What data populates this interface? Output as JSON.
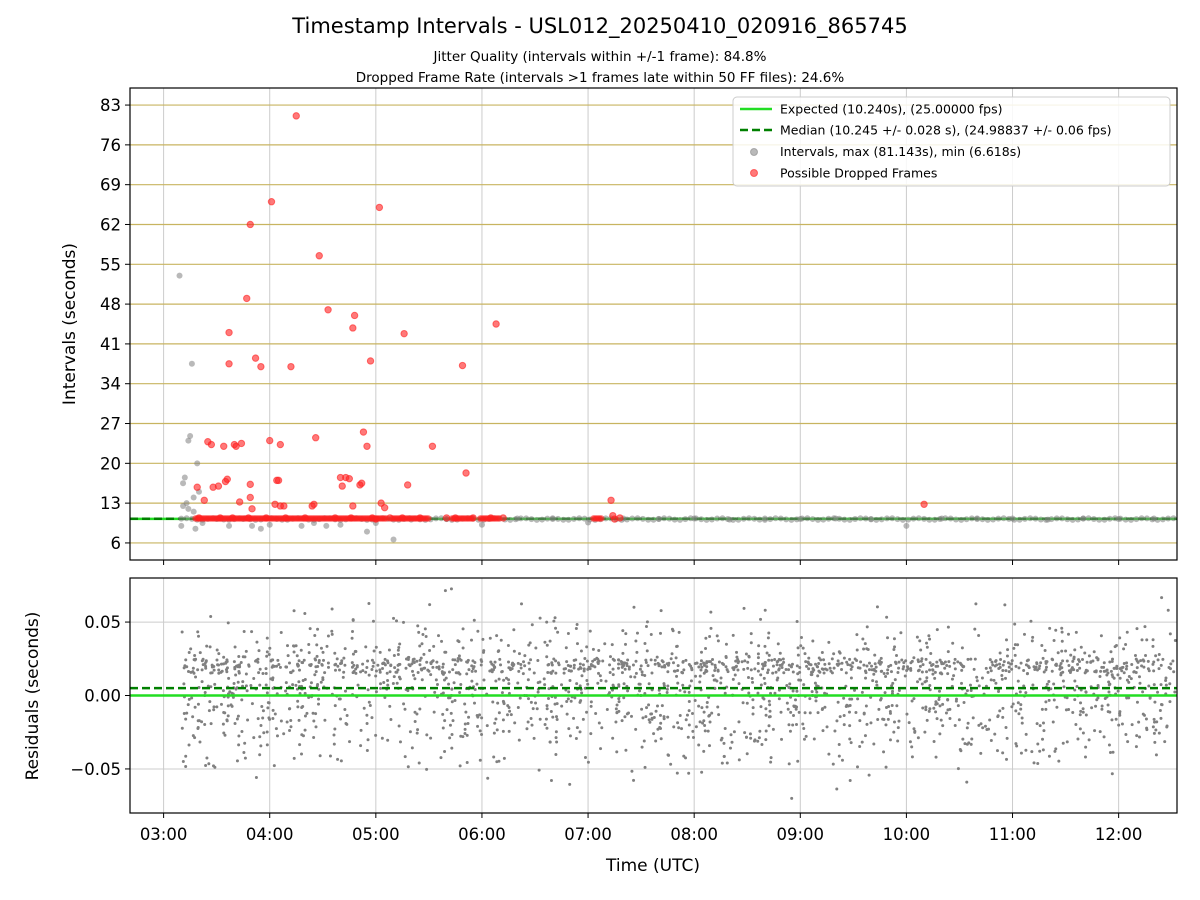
{
  "title": "Timestamp Intervals - USL012_20250410_020916_865745",
  "subtitle_1": "Jitter Quality (intervals within +/-1 frame): 84.8%",
  "subtitle_2": "Dropped Frame Rate (intervals >1 frames late within 50 FF files): 24.6%",
  "colors": {
    "expected": "#22dd22",
    "median": "#008000",
    "intervals": "#808080",
    "dropped": "#ff2020",
    "hgrid": "#c8b460",
    "vgrid": "#cccccc"
  },
  "chart_data": [
    {
      "type": "scatter",
      "ylabel": "Intervals (seconds)",
      "xlim": [
        "02:41",
        "12:33"
      ],
      "ylim": [
        3,
        86
      ],
      "yticks": [
        6,
        13,
        20,
        27,
        34,
        41,
        48,
        55,
        62,
        69,
        76,
        83
      ],
      "xticks": [
        "03:00",
        "04:00",
        "05:00",
        "06:00",
        "07:00",
        "08:00",
        "09:00",
        "10:00",
        "11:00",
        "12:00"
      ],
      "grid": true,
      "legend_position": "upper-right",
      "legend": [
        "Expected (10.240s), (25.00000 fps)",
        "Median (10.245 +/- 0.028 s), (24.98837 +/- 0.06 fps)",
        "Intervals, max (81.143s), min (6.618s)",
        "Possible Dropped Frames"
      ],
      "lines": [
        {
          "name": "Expected (10.240s), (25.00000 fps)",
          "y": 10.24,
          "style": "solid"
        },
        {
          "name": "Median (10.245 +/- 0.028 s), (24.98837 +/- 0.06 fps)",
          "y": 10.245,
          "style": "dashed"
        }
      ],
      "series": [
        {
          "name": "Intervals, max (81.143s), min (6.618s)",
          "points": [
            [
              "03:09",
              53.0
            ],
            [
              "03:10",
              9.0
            ],
            [
              "03:11",
              12.5
            ],
            [
              "03:11",
              16.5
            ],
            [
              "03:12",
              17.5
            ],
            [
              "03:13",
              13.0
            ],
            [
              "03:14",
              24.0
            ],
            [
              "03:14",
              12.0
            ],
            [
              "03:15",
              24.8
            ],
            [
              "03:16",
              37.5
            ],
            [
              "03:17",
              11.5
            ],
            [
              "03:17",
              14.0
            ],
            [
              "03:18",
              8.5
            ],
            [
              "03:19",
              20.0
            ],
            [
              "03:20",
              15.0
            ],
            [
              "03:22",
              9.5
            ],
            [
              "03:30",
              10.2
            ],
            [
              "03:37",
              9.0
            ],
            [
              "03:45",
              10.2
            ],
            [
              "03:50",
              9.0
            ],
            [
              "03:55",
              8.5
            ],
            [
              "04:00",
              9.2
            ],
            [
              "04:10",
              10.3
            ],
            [
              "04:18",
              9.0
            ],
            [
              "04:25",
              9.5
            ],
            [
              "04:32",
              9.0
            ],
            [
              "04:40",
              9.2
            ],
            [
              "04:48",
              10.3
            ],
            [
              "04:55",
              8.0
            ],
            [
              "05:00",
              9.5
            ],
            [
              "05:10",
              6.6
            ],
            [
              "05:20",
              10.1
            ],
            [
              "05:40",
              10.2
            ],
            [
              "06:00",
              9.2
            ],
            [
              "06:20",
              10.3
            ],
            [
              "06:40",
              10.2
            ],
            [
              "07:00",
              9.6
            ],
            [
              "07:20",
              10.3
            ],
            [
              "07:40",
              10.2
            ],
            [
              "08:00",
              10.3
            ],
            [
              "08:20",
              10.1
            ],
            [
              "08:40",
              10.3
            ],
            [
              "09:00",
              10.2
            ],
            [
              "09:20",
              10.3
            ],
            [
              "09:40",
              10.2
            ],
            [
              "10:00",
              9.0
            ],
            [
              "10:20",
              10.3
            ],
            [
              "10:40",
              10.2
            ],
            [
              "11:00",
              10.3
            ],
            [
              "11:20",
              10.1
            ],
            [
              "11:40",
              10.3
            ],
            [
              "12:00",
              10.2
            ],
            [
              "12:20",
              10.3
            ]
          ]
        },
        {
          "name": "Possible Dropped Frames",
          "points": [
            [
              "03:19",
              15.8
            ],
            [
              "03:20",
              10.4
            ],
            [
              "03:23",
              13.5
            ],
            [
              "03:25",
              23.8
            ],
            [
              "03:27",
              23.3
            ],
            [
              "03:28",
              15.8
            ],
            [
              "03:31",
              16.0
            ],
            [
              "03:32",
              10.4
            ],
            [
              "03:34",
              23.0
            ],
            [
              "03:35",
              16.8
            ],
            [
              "03:36",
              17.2
            ],
            [
              "03:37",
              43.0
            ],
            [
              "03:37",
              37.5
            ],
            [
              "03:39",
              10.4
            ],
            [
              "03:40",
              23.3
            ],
            [
              "03:41",
              23.0
            ],
            [
              "03:43",
              13.2
            ],
            [
              "03:44",
              23.5
            ],
            [
              "03:47",
              49.0
            ],
            [
              "03:48",
              10.4
            ],
            [
              "03:49",
              16.3
            ],
            [
              "03:49",
              14.0
            ],
            [
              "03:49",
              62.0
            ],
            [
              "03:50",
              12.0
            ],
            [
              "03:52",
              38.5
            ],
            [
              "03:55",
              37.0
            ],
            [
              "03:58",
              10.4
            ],
            [
              "04:00",
              24.0
            ],
            [
              "04:01",
              66.0
            ],
            [
              "04:03",
              12.8
            ],
            [
              "04:04",
              17.0
            ],
            [
              "04:05",
              17.0
            ],
            [
              "04:06",
              12.5
            ],
            [
              "04:06",
              23.3
            ],
            [
              "04:08",
              12.5
            ],
            [
              "04:09",
              10.4
            ],
            [
              "04:12",
              37.0
            ],
            [
              "04:15",
              81.1
            ],
            [
              "04:20",
              10.4
            ],
            [
              "04:24",
              12.5
            ],
            [
              "04:25",
              12.8
            ],
            [
              "04:26",
              24.5
            ],
            [
              "04:28",
              56.5
            ],
            [
              "04:33",
              47.0
            ],
            [
              "04:37",
              10.4
            ],
            [
              "04:40",
              17.5
            ],
            [
              "04:41",
              16.0
            ],
            [
              "04:43",
              17.5
            ],
            [
              "04:45",
              17.3
            ],
            [
              "04:46",
              10.4
            ],
            [
              "04:47",
              43.8
            ],
            [
              "04:47",
              12.5
            ],
            [
              "04:48",
              46.0
            ],
            [
              "04:51",
              16.2
            ],
            [
              "04:52",
              16.5
            ],
            [
              "04:53",
              25.5
            ],
            [
              "04:55",
              23.0
            ],
            [
              "04:57",
              38.0
            ],
            [
              "04:58",
              10.4
            ],
            [
              "05:00",
              10.2
            ],
            [
              "05:02",
              65.0
            ],
            [
              "05:03",
              13.0
            ],
            [
              "05:05",
              12.2
            ],
            [
              "05:08",
              10.4
            ],
            [
              "05:15",
              10.4
            ],
            [
              "05:16",
              42.8
            ],
            [
              "05:18",
              16.2
            ],
            [
              "05:25",
              10.4
            ],
            [
              "05:32",
              23.0
            ],
            [
              "05:40",
              10.4
            ],
            [
              "05:45",
              10.4
            ],
            [
              "05:49",
              37.2
            ],
            [
              "05:51",
              18.3
            ],
            [
              "05:55",
              10.4
            ],
            [
              "06:05",
              10.4
            ],
            [
              "06:08",
              44.5
            ],
            [
              "06:12",
              10.4
            ],
            [
              "07:13",
              13.5
            ],
            [
              "07:14",
              10.8
            ],
            [
              "07:15",
              10.2
            ],
            [
              "07:18",
              10.4
            ],
            [
              "10:10",
              12.8
            ]
          ]
        }
      ],
      "dense_bands": [
        {
          "name": "Possible Dropped Frames",
          "from": "03:18",
          "to": "05:06",
          "y": 10.3
        },
        {
          "name": "Possible Dropped Frames",
          "from": "05:09",
          "to": "05:30",
          "y": 10.3
        },
        {
          "name": "Possible Dropped Frames",
          "from": "05:43",
          "to": "05:55",
          "y": 10.3
        },
        {
          "name": "Possible Dropped Frames",
          "from": "05:59",
          "to": "06:10",
          "y": 10.3
        },
        {
          "name": "Possible Dropped Frames",
          "from": "07:03",
          "to": "07:08",
          "y": 10.3
        }
      ]
    },
    {
      "type": "scatter",
      "ylabel": "Residuals (seconds)",
      "xlabel": "Time (UTC)",
      "xlim": [
        "02:41",
        "12:33"
      ],
      "ylim": [
        -0.08,
        0.08
      ],
      "yticks": [
        -0.05,
        0.0,
        0.05
      ],
      "ytick_labels": [
        "−0.05",
        "0.00",
        "0.05"
      ],
      "xticks": [
        "03:00",
        "04:00",
        "05:00",
        "06:00",
        "07:00",
        "08:00",
        "09:00",
        "10:00",
        "11:00",
        "12:00"
      ],
      "grid": true,
      "lines": [
        {
          "name": "Expected",
          "y": 0.0,
          "style": "solid"
        },
        {
          "name": "Median",
          "y": 0.005,
          "style": "dashed"
        }
      ],
      "series": [
        {
          "name": "Residuals",
          "x_range": [
            "03:10",
            "12:33"
          ],
          "count": 2200,
          "mean": 0.003,
          "std": 0.024,
          "y_range": [
            -0.075,
            0.079
          ]
        }
      ]
    }
  ]
}
